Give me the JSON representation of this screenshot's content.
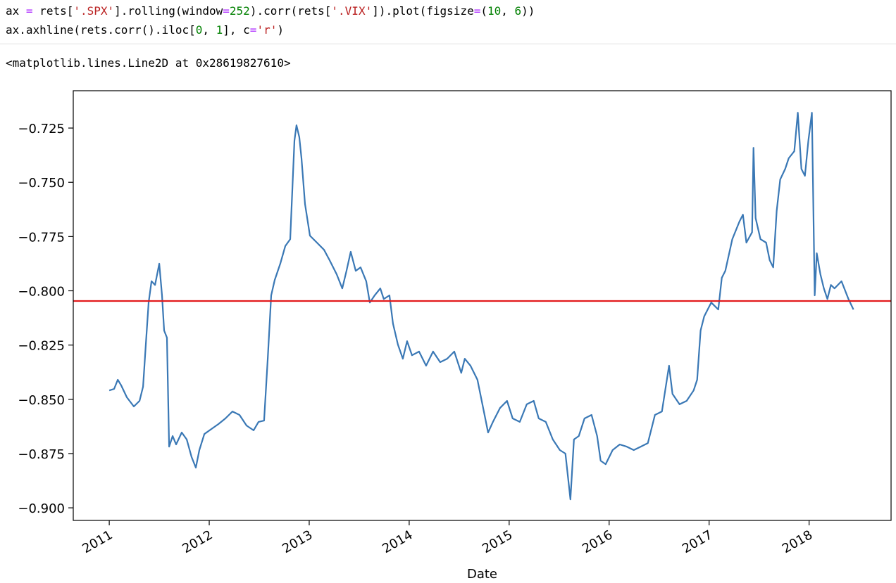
{
  "code": {
    "lines": [
      [
        {
          "text": "ax ",
          "color": "#000000"
        },
        {
          "text": "=",
          "color": "#aa22ff"
        },
        {
          "text": " rets[",
          "color": "#000000"
        },
        {
          "text": "'.SPX'",
          "color": "#ba2121"
        },
        {
          "text": "].rolling(window",
          "color": "#000000"
        },
        {
          "text": "=",
          "color": "#aa22ff"
        },
        {
          "text": "252",
          "color": "#008000"
        },
        {
          "text": ").corr(rets[",
          "color": "#000000"
        },
        {
          "text": "'.VIX'",
          "color": "#ba2121"
        },
        {
          "text": "]).plot(figsize",
          "color": "#000000"
        },
        {
          "text": "=",
          "color": "#aa22ff"
        },
        {
          "text": "(",
          "color": "#000000"
        },
        {
          "text": "10",
          "color": "#008000"
        },
        {
          "text": ", ",
          "color": "#000000"
        },
        {
          "text": "6",
          "color": "#008000"
        },
        {
          "text": "))",
          "color": "#000000"
        }
      ],
      [
        {
          "text": "ax.axhline(rets.corr().iloc[",
          "color": "#000000"
        },
        {
          "text": "0",
          "color": "#008000"
        },
        {
          "text": ", ",
          "color": "#000000"
        },
        {
          "text": "1",
          "color": "#008000"
        },
        {
          "text": "], c",
          "color": "#000000"
        },
        {
          "text": "=",
          "color": "#aa22ff"
        },
        {
          "text": "'r'",
          "color": "#ba2121"
        },
        {
          "text": ")",
          "color": "#000000"
        }
      ]
    ]
  },
  "output": "<matplotlib.lines.Line2D at 0x28619827610>",
  "chart_data": {
    "type": "line",
    "xlabel": "Date",
    "x": [
      2011.0,
      2011.049,
      2011.085,
      2011.12,
      2011.176,
      2011.246,
      2011.303,
      2011.338,
      2011.366,
      2011.394,
      2011.423,
      2011.458,
      2011.5,
      2011.528,
      2011.549,
      2011.577,
      2011.599,
      2011.634,
      2011.669,
      2011.725,
      2011.775,
      2011.824,
      2011.866,
      2011.901,
      2011.951,
      2012.021,
      2012.092,
      2012.162,
      2012.232,
      2012.303,
      2012.373,
      2012.444,
      2012.493,
      2012.549,
      2012.585,
      2012.62,
      2012.655,
      2012.711,
      2012.761,
      2012.81,
      2012.852,
      2012.873,
      2012.901,
      2012.923,
      2012.958,
      2013.007,
      2013.077,
      2013.148,
      2013.204,
      2013.275,
      2013.331,
      2013.373,
      2013.415,
      2013.465,
      2013.514,
      2013.57,
      2013.606,
      2013.655,
      2013.711,
      2013.746,
      2013.803,
      2013.838,
      2013.887,
      2013.937,
      2013.979,
      2014.028,
      2014.099,
      2014.169,
      2014.239,
      2014.31,
      2014.38,
      2014.451,
      2014.521,
      2014.556,
      2014.613,
      2014.683,
      2014.754,
      2014.789,
      2014.838,
      2014.908,
      2014.979,
      2015.035,
      2015.106,
      2015.176,
      2015.246,
      2015.296,
      2015.366,
      2015.437,
      2015.507,
      2015.563,
      2015.613,
      2015.648,
      2015.697,
      2015.754,
      2015.824,
      2015.88,
      2015.915,
      2015.965,
      2016.035,
      2016.106,
      2016.176,
      2016.246,
      2016.317,
      2016.387,
      2016.458,
      2016.528,
      2016.599,
      2016.634,
      2016.704,
      2016.775,
      2016.845,
      2016.88,
      2016.915,
      2016.951,
      2017.021,
      2017.092,
      2017.127,
      2017.162,
      2017.232,
      2017.303,
      2017.338,
      2017.373,
      2017.43,
      2017.444,
      2017.465,
      2017.514,
      2017.57,
      2017.606,
      2017.641,
      2017.676,
      2017.711,
      2017.761,
      2017.796,
      2017.852,
      2017.887,
      2017.923,
      2017.958,
      2017.993,
      2018.028,
      2018.056,
      2018.077,
      2018.113,
      2018.148,
      2018.183,
      2018.218,
      2018.254,
      2018.324,
      2018.394,
      2018.444
    ],
    "series": [
      {
        "color": "#3a78b5",
        "values": [
          -0.8459,
          -0.8452,
          -0.841,
          -0.8436,
          -0.8491,
          -0.8533,
          -0.8507,
          -0.8442,
          -0.8248,
          -0.8054,
          -0.7956,
          -0.7973,
          -0.7875,
          -0.8021,
          -0.8183,
          -0.8216,
          -0.8718,
          -0.8669,
          -0.8708,
          -0.8653,
          -0.8685,
          -0.8766,
          -0.8815,
          -0.8734,
          -0.866,
          -0.8637,
          -0.8614,
          -0.8588,
          -0.8556,
          -0.8572,
          -0.8621,
          -0.8643,
          -0.8604,
          -0.8598,
          -0.8313,
          -0.8021,
          -0.795,
          -0.7875,
          -0.7794,
          -0.7762,
          -0.7308,
          -0.7237,
          -0.7292,
          -0.7389,
          -0.76,
          -0.7746,
          -0.7778,
          -0.7811,
          -0.7859,
          -0.7924,
          -0.7989,
          -0.7908,
          -0.782,
          -0.7908,
          -0.7892,
          -0.7956,
          -0.8054,
          -0.8021,
          -0.7989,
          -0.8038,
          -0.8021,
          -0.8151,
          -0.8248,
          -0.8313,
          -0.8232,
          -0.8297,
          -0.828,
          -0.8345,
          -0.828,
          -0.8329,
          -0.8313,
          -0.828,
          -0.8378,
          -0.8313,
          -0.8345,
          -0.841,
          -0.8572,
          -0.8653,
          -0.8604,
          -0.854,
          -0.8507,
          -0.8588,
          -0.8604,
          -0.8523,
          -0.8507,
          -0.8588,
          -0.8604,
          -0.8685,
          -0.8734,
          -0.875,
          -0.8961,
          -0.8685,
          -0.8669,
          -0.8588,
          -0.8572,
          -0.8669,
          -0.8783,
          -0.8799,
          -0.8734,
          -0.8708,
          -0.8718,
          -0.8734,
          -0.8718,
          -0.8702,
          -0.8572,
          -0.8556,
          -0.8345,
          -0.8475,
          -0.8523,
          -0.8507,
          -0.8459,
          -0.841,
          -0.8183,
          -0.8118,
          -0.8054,
          -0.8086,
          -0.794,
          -0.7908,
          -0.7762,
          -0.7681,
          -0.7649,
          -0.7778,
          -0.773,
          -0.7341,
          -0.7665,
          -0.7762,
          -0.7778,
          -0.7859,
          -0.7892,
          -0.7632,
          -0.7487,
          -0.7438,
          -0.7389,
          -0.7357,
          -0.7179,
          -0.7438,
          -0.747,
          -0.7308,
          -0.7179,
          -0.8021,
          -0.7827,
          -0.7924,
          -0.7989,
          -0.8038,
          -0.7973,
          -0.7989,
          -0.7956,
          -0.8038,
          -0.8086
        ]
      }
    ],
    "hlines": [
      {
        "value": -0.8047,
        "color": "#e31a1c"
      }
    ],
    "xlim": [
      2010.64,
      2018.82
    ],
    "ylim": [
      -0.9058,
      -0.7078
    ],
    "xticks": [
      2011,
      2012,
      2013,
      2014,
      2015,
      2016,
      2017,
      2018
    ],
    "yticks": [
      {
        "value": -0.9,
        "label": "−0.900"
      },
      {
        "value": -0.875,
        "label": "−0.875"
      },
      {
        "value": -0.85,
        "label": "−0.850"
      },
      {
        "value": -0.825,
        "label": "−0.825"
      },
      {
        "value": -0.8,
        "label": "−0.800"
      },
      {
        "value": -0.775,
        "label": "−0.775"
      },
      {
        "value": -0.75,
        "label": "−0.750"
      },
      {
        "value": -0.725,
        "label": "−0.725"
      }
    ],
    "grid": false
  }
}
